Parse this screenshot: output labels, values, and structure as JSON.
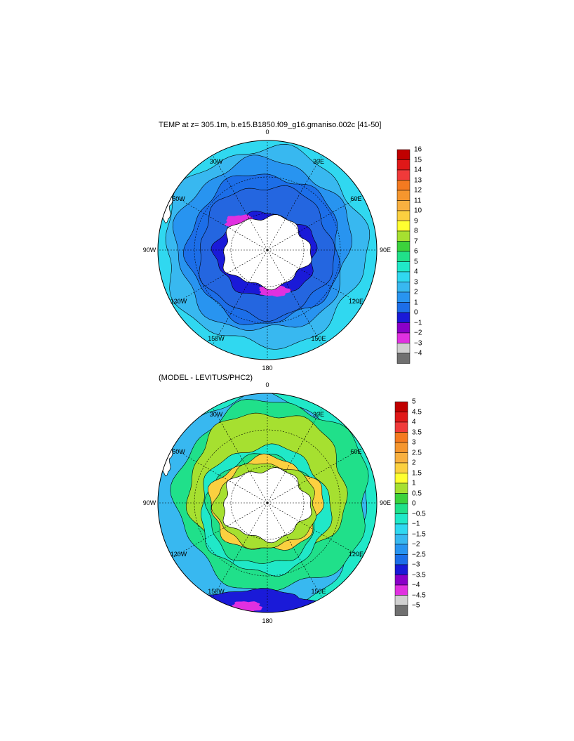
{
  "panels": [
    {
      "title": "TEMP at z= 305.1m, b.e15.B1850.f09_g16.gmaniso.002c [41-50]",
      "longitude_labels": [
        "0",
        "30E",
        "60E",
        "90E",
        "120E",
        "150E",
        "180",
        "150W",
        "120W",
        "90W",
        "60W",
        "30W"
      ],
      "colorbar": {
        "labels": [
          "16",
          "15",
          "14",
          "13",
          "12",
          "11",
          "10",
          "9",
          "8",
          "7",
          "6",
          "5",
          "4",
          "3",
          "2",
          "1",
          "0",
          "−1",
          "−2",
          "−3",
          "−4"
        ],
        "colors": [
          "#c00000",
          "#e01818",
          "#f03a3a",
          "#f47a20",
          "#f5962e",
          "#f8b040",
          "#fbd040",
          "#ffff30",
          "#a6e030",
          "#3cd23c",
          "#20e08a",
          "#20e8c8",
          "#30d8f0",
          "#38b8f0",
          "#2894f0",
          "#1c6ee8",
          "#1a1ad8",
          "#8a00c8",
          "#e030e0",
          "#d0d0d0",
          "#707070"
        ]
      }
    },
    {
      "title": "(MODEL - LEVITUS/PHC2)",
      "longitude_labels": [
        "0",
        "30E",
        "60E",
        "90E",
        "120E",
        "150E",
        "180",
        "150W",
        "120W",
        "90W",
        "60W",
        "30W"
      ],
      "colorbar": {
        "labels": [
          "5",
          "4.5",
          "4",
          "3.5",
          "3",
          "2.5",
          "2",
          "1.5",
          "1",
          "0.5",
          "0",
          "−0.5",
          "−1",
          "−1.5",
          "−2",
          "−2.5",
          "−3",
          "−3.5",
          "−4",
          "−4.5",
          "−5"
        ],
        "colors": [
          "#c00000",
          "#e01818",
          "#f03a3a",
          "#f47a20",
          "#f5962e",
          "#f8b040",
          "#fbd040",
          "#ffff30",
          "#a6e030",
          "#3cd23c",
          "#20e08a",
          "#20e8c8",
          "#30d8f0",
          "#38b8f0",
          "#2894f0",
          "#1c6ee8",
          "#1a1ad8",
          "#8a00c8",
          "#e030e0",
          "#d0d0d0",
          "#707070"
        ]
      }
    }
  ]
}
